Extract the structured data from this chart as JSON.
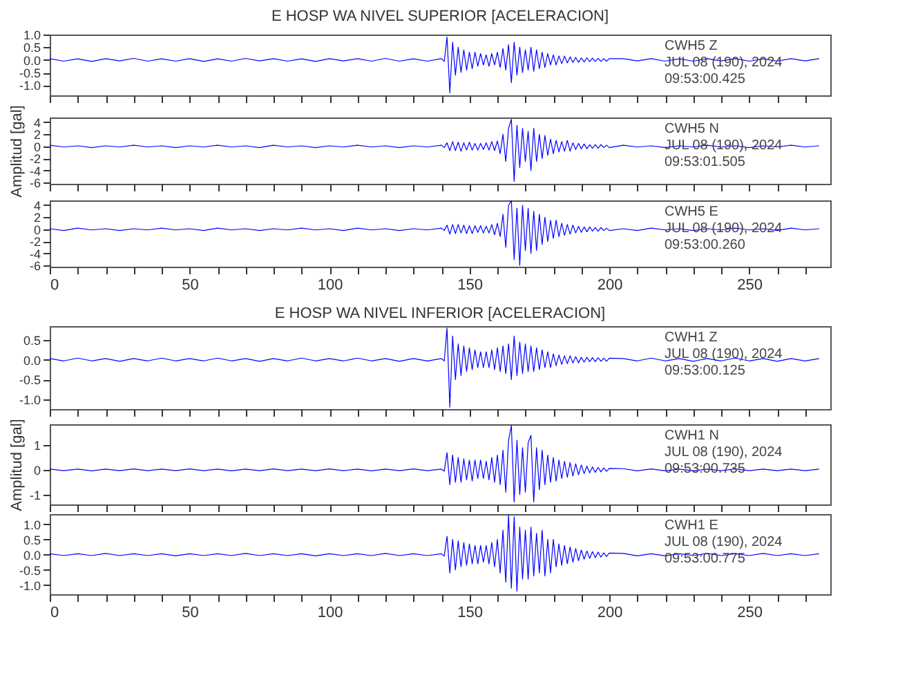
{
  "chart_data": [
    {
      "type": "line",
      "title": "E HOSP WA NIVEL SUPERIOR [ACELERACION]",
      "tick_labels": "y",
      "grid": false,
      "xlim": [
        0,
        279
      ],
      "ylim": [
        -1.4,
        1.0
      ],
      "xticks": [
        0,
        {
          "value": 10,
          "label": null
        },
        {
          "value": 20,
          "label": null
        },
        {
          "value": 30,
          "label": null
        },
        {
          "value": 40,
          "label": null
        },
        50,
        {
          "value": 60,
          "label": null
        },
        {
          "value": 70,
          "label": null
        },
        {
          "value": 80,
          "label": null
        },
        {
          "value": 90,
          "label": null
        },
        100,
        {
          "value": 110,
          "label": null
        },
        {
          "value": 120,
          "label": null
        },
        {
          "value": 130,
          "label": null
        },
        {
          "value": 140,
          "label": null
        },
        150,
        {
          "value": 160,
          "label": null
        },
        {
          "value": 170,
          "label": null
        },
        {
          "value": 180,
          "label": null
        },
        {
          "value": 190,
          "label": null
        },
        200,
        {
          "value": 210,
          "label": null
        },
        {
          "value": 220,
          "label": null
        },
        {
          "value": 230,
          "label": null
        },
        {
          "value": 240,
          "label": null
        },
        250,
        {
          "value": 260,
          "label": null
        },
        {
          "value": 270,
          "label": null
        }
      ],
      "yticks": [
        {
          "value": 1,
          "label": "1.0"
        },
        0.5,
        {
          "value": 0,
          "label": "0.0"
        },
        -0.5,
        {
          "value": -1,
          "label": "-1.0"
        }
      ],
      "annotations": [
        "CWH5   Z",
        "JUL 08 (190), 2024",
        "09:53:00.425"
      ],
      "x": [
        0,
        5,
        10,
        15,
        20,
        25,
        30,
        35,
        40,
        45,
        50,
        55,
        60,
        65,
        70,
        75,
        80,
        85,
        90,
        95,
        100,
        105,
        110,
        115,
        120,
        125,
        130,
        135,
        140,
        141,
        142,
        143,
        144,
        145,
        146,
        147,
        148,
        149,
        150,
        151,
        152,
        153,
        154,
        155,
        156,
        157,
        158,
        159,
        160,
        161,
        162,
        163,
        164,
        165,
        166,
        167,
        168,
        169,
        170,
        171,
        172,
        173,
        174,
        175,
        176,
        177,
        178,
        179,
        180,
        181,
        182,
        183,
        184,
        185,
        186,
        187,
        188,
        189,
        190,
        191,
        192,
        193,
        194,
        195,
        196,
        197,
        198,
        199,
        200,
        205,
        210,
        215,
        220,
        225,
        230,
        235,
        240,
        245,
        250,
        255,
        260,
        265,
        270,
        275
      ],
      "series": [
        {
          "color": "#0000ff",
          "values": [
            0.05,
            -0.05,
            0.04,
            -0.06,
            0.05,
            -0.04,
            0.06,
            -0.05,
            0.04,
            -0.05,
            0.05,
            -0.06,
            0.04,
            -0.05,
            0.06,
            -0.04,
            0.05,
            -0.05,
            0.04,
            -0.06,
            0.05,
            -0.04,
            0.05,
            -0.05,
            0.06,
            -0.05,
            0.04,
            -0.05,
            0.05,
            -0.06,
            0.9,
            -1.3,
            0.7,
            -0.6,
            0.5,
            -0.5,
            0.4,
            -0.4,
            0.3,
            -0.35,
            0.3,
            -0.25,
            0.25,
            -0.2,
            0.2,
            -0.25,
            0.25,
            -0.2,
            0.3,
            -0.3,
            0.45,
            -0.4,
            0.6,
            -0.9,
            0.7,
            -0.6,
            0.5,
            -0.5,
            0.4,
            -0.4,
            0.5,
            -0.45,
            0.4,
            -0.35,
            0.3,
            -0.3,
            0.25,
            -0.2,
            0.2,
            -0.2,
            0.15,
            -0.15,
            0.15,
            -0.12,
            0.12,
            -0.1,
            0.1,
            -0.1,
            0.08,
            -0.08,
            0.08,
            -0.07,
            0.07,
            -0.06,
            0.06,
            -0.06,
            0.05,
            -0.05,
            0.05,
            0.05,
            -0.04,
            0.05,
            -0.05,
            0.04,
            -0.05,
            0.05,
            -0.04,
            0.05,
            -0.05,
            0.04,
            -0.05,
            0.05,
            -0.04,
            0.05
          ]
        }
      ]
    },
    {
      "type": "line",
      "ylabel": "Amplitud [gal]",
      "tick_labels": "y",
      "grid": false,
      "xlim": [
        0,
        279
      ],
      "ylim": [
        -6.2,
        4.8
      ],
      "xticks": [
        0,
        {
          "value": 10,
          "label": null
        },
        {
          "value": 20,
          "label": null
        },
        {
          "value": 30,
          "label": null
        },
        {
          "value": 40,
          "label": null
        },
        50,
        {
          "value": 60,
          "label": null
        },
        {
          "value": 70,
          "label": null
        },
        {
          "value": 80,
          "label": null
        },
        {
          "value": 90,
          "label": null
        },
        100,
        {
          "value": 110,
          "label": null
        },
        {
          "value": 120,
          "label": null
        },
        {
          "value": 130,
          "label": null
        },
        {
          "value": 140,
          "label": null
        },
        150,
        {
          "value": 160,
          "label": null
        },
        {
          "value": 170,
          "label": null
        },
        {
          "value": 180,
          "label": null
        },
        {
          "value": 190,
          "label": null
        },
        200,
        {
          "value": 210,
          "label": null
        },
        {
          "value": 220,
          "label": null
        },
        {
          "value": 230,
          "label": null
        },
        {
          "value": 240,
          "label": null
        },
        250,
        {
          "value": 260,
          "label": null
        },
        {
          "value": 270,
          "label": null
        }
      ],
      "yticks": [
        4,
        2,
        0,
        -2,
        -4,
        -6
      ],
      "annotations": [
        "CWH5   N",
        "JUL 08 (190), 2024",
        "09:53:01.505"
      ],
      "x": [
        0,
        5,
        10,
        15,
        20,
        25,
        30,
        35,
        40,
        45,
        50,
        55,
        60,
        65,
        70,
        75,
        80,
        85,
        90,
        95,
        100,
        105,
        110,
        115,
        120,
        125,
        130,
        135,
        140,
        141,
        142,
        143,
        144,
        145,
        146,
        147,
        148,
        149,
        150,
        151,
        152,
        153,
        154,
        155,
        156,
        157,
        158,
        159,
        160,
        161,
        162,
        163,
        164,
        165,
        166,
        167,
        168,
        169,
        170,
        171,
        172,
        173,
        174,
        175,
        176,
        177,
        178,
        179,
        180,
        181,
        182,
        183,
        184,
        185,
        186,
        187,
        188,
        189,
        190,
        191,
        192,
        193,
        194,
        195,
        196,
        197,
        198,
        199,
        200,
        205,
        210,
        215,
        220,
        225,
        230,
        235,
        240,
        245,
        250,
        255,
        260,
        265,
        270,
        275
      ],
      "series": [
        {
          "color": "#0000ff",
          "values": [
            0.2,
            -0.1,
            0.1,
            -0.2,
            0.1,
            -0.1,
            0.2,
            -0.1,
            0.1,
            -0.2,
            0.1,
            -0.1,
            0.2,
            -0.1,
            0.1,
            -0.2,
            0.2,
            -0.1,
            0.1,
            -0.2,
            0.1,
            -0.1,
            0.2,
            -0.1,
            0.1,
            -0.2,
            0.1,
            -0.1,
            0.2,
            -0.2,
            0.6,
            -0.7,
            0.8,
            -0.7,
            0.7,
            -0.8,
            0.6,
            -0.6,
            0.7,
            -0.6,
            0.5,
            -0.6,
            0.5,
            -0.5,
            0.6,
            -0.6,
            0.8,
            -0.7,
            0.9,
            -1.2,
            2,
            -2.5,
            3,
            4.5,
            -5.8,
            3.5,
            -3.5,
            3,
            -2.5,
            2.5,
            -4,
            3,
            -2.5,
            2,
            -2,
            1.8,
            -1.5,
            1.2,
            -1.2,
            1,
            -0.9,
            0.8,
            -0.8,
            1,
            -0.8,
            0.6,
            -0.5,
            0.5,
            -0.4,
            0.4,
            -0.4,
            0.3,
            -0.3,
            0.3,
            -0.3,
            0.3,
            -0.2,
            0.2,
            -0.2,
            0.2,
            -0.1,
            0.1,
            -0.2,
            0.1,
            -0.1,
            0.2,
            -0.1,
            0.1,
            -0.2,
            0.1,
            -0.1,
            0.2,
            -0.1,
            0.1
          ]
        }
      ]
    },
    {
      "type": "line",
      "grid": false,
      "xlim": [
        0,
        279
      ],
      "ylim": [
        -6.2,
        4.8
      ],
      "xticks": [
        0,
        {
          "value": 10,
          "label": null
        },
        {
          "value": 20,
          "label": null
        },
        {
          "value": 30,
          "label": null
        },
        {
          "value": 40,
          "label": null
        },
        50,
        {
          "value": 60,
          "label": null
        },
        {
          "value": 70,
          "label": null
        },
        {
          "value": 80,
          "label": null
        },
        {
          "value": 90,
          "label": null
        },
        100,
        {
          "value": 110,
          "label": null
        },
        {
          "value": 120,
          "label": null
        },
        {
          "value": 130,
          "label": null
        },
        {
          "value": 140,
          "label": null
        },
        150,
        {
          "value": 160,
          "label": null
        },
        {
          "value": 170,
          "label": null
        },
        {
          "value": 180,
          "label": null
        },
        {
          "value": 190,
          "label": null
        },
        200,
        {
          "value": 210,
          "label": null
        },
        {
          "value": 220,
          "label": null
        },
        {
          "value": 230,
          "label": null
        },
        {
          "value": 240,
          "label": null
        },
        250,
        {
          "value": 260,
          "label": null
        },
        {
          "value": 270,
          "label": null
        }
      ],
      "yticks": [
        4,
        2,
        0,
        -2,
        -4,
        -6
      ],
      "annotations": [
        "CWH5   E",
        "JUL 08 (190), 2024",
        "09:53:00.260"
      ],
      "x": [
        0,
        5,
        10,
        15,
        20,
        25,
        30,
        35,
        40,
        45,
        50,
        55,
        60,
        65,
        70,
        75,
        80,
        85,
        90,
        95,
        100,
        105,
        110,
        115,
        120,
        125,
        130,
        135,
        140,
        141,
        142,
        143,
        144,
        145,
        146,
        147,
        148,
        149,
        150,
        151,
        152,
        153,
        154,
        155,
        156,
        157,
        158,
        159,
        160,
        161,
        162,
        163,
        164,
        165,
        166,
        167,
        168,
        169,
        170,
        171,
        172,
        173,
        174,
        175,
        176,
        177,
        178,
        179,
        180,
        181,
        182,
        183,
        184,
        185,
        186,
        187,
        188,
        189,
        190,
        191,
        192,
        193,
        194,
        195,
        196,
        197,
        198,
        199,
        200,
        205,
        210,
        215,
        220,
        225,
        230,
        235,
        240,
        245,
        250,
        255,
        260,
        265,
        270,
        275
      ],
      "series": [
        {
          "color": "#0000ff",
          "values": [
            0.1,
            -0.2,
            0.2,
            -0.1,
            0.1,
            -0.2,
            0.1,
            -0.1,
            0.2,
            -0.1,
            0.1,
            -0.2,
            0.2,
            -0.1,
            0.1,
            -0.2,
            0.1,
            -0.1,
            0.2,
            -0.1,
            0.1,
            -0.2,
            0.2,
            -0.1,
            0.1,
            -0.2,
            0.1,
            -0.1,
            0.2,
            -0.2,
            0.7,
            -0.8,
            0.8,
            -0.7,
            0.8,
            -0.6,
            0.7,
            -0.7,
            0.6,
            -0.7,
            0.6,
            -0.5,
            0.6,
            -0.6,
            0.5,
            -0.6,
            0.8,
            -0.9,
            1,
            -1.2,
            2.5,
            -3,
            4,
            4.8,
            -5,
            3.5,
            -6,
            4,
            -3.5,
            3.5,
            -4,
            3,
            -3.5,
            2.5,
            -2.5,
            2,
            -2,
            1.5,
            -1.5,
            1.5,
            -1.2,
            1,
            -1,
            0.8,
            -0.8,
            0.7,
            -0.6,
            0.5,
            -0.5,
            0.4,
            -0.4,
            0.4,
            -0.3,
            0.3,
            -0.3,
            0.3,
            -0.2,
            0.2,
            -0.2,
            0.1,
            -0.2,
            0.2,
            -0.1,
            0.1,
            -0.2,
            0.1,
            -0.1,
            0.2,
            -0.1,
            0.1,
            -0.2,
            0.2,
            -0.1,
            0.1
          ]
        }
      ]
    },
    {
      "type": "line",
      "title": "E HOSP WA NIVEL INFERIOR [ACELERACION]",
      "tick_labels": "y",
      "grid": false,
      "xlim": [
        0,
        279
      ],
      "ylim": [
        -1.25,
        0.85
      ],
      "xticks": [
        0,
        {
          "value": 10,
          "label": null
        },
        {
          "value": 20,
          "label": null
        },
        {
          "value": 30,
          "label": null
        },
        {
          "value": 40,
          "label": null
        },
        50,
        {
          "value": 60,
          "label": null
        },
        {
          "value": 70,
          "label": null
        },
        {
          "value": 80,
          "label": null
        },
        {
          "value": 90,
          "label": null
        },
        100,
        {
          "value": 110,
          "label": null
        },
        {
          "value": 120,
          "label": null
        },
        {
          "value": 130,
          "label": null
        },
        {
          "value": 140,
          "label": null
        },
        150,
        {
          "value": 160,
          "label": null
        },
        {
          "value": 170,
          "label": null
        },
        {
          "value": 180,
          "label": null
        },
        {
          "value": 190,
          "label": null
        },
        200,
        {
          "value": 210,
          "label": null
        },
        {
          "value": 220,
          "label": null
        },
        {
          "value": 230,
          "label": null
        },
        {
          "value": 240,
          "label": null
        },
        250,
        {
          "value": 260,
          "label": null
        },
        {
          "value": 270,
          "label": null
        }
      ],
      "yticks": [
        0.5,
        {
          "value": 0,
          "label": "0.0"
        },
        -0.5,
        {
          "value": -1,
          "label": "-1.0"
        }
      ],
      "annotations": [
        "CWH1   Z",
        "JUL 08 (190), 2024",
        "09:53:00.125"
      ],
      "x": [
        0,
        5,
        10,
        15,
        20,
        25,
        30,
        35,
        40,
        45,
        50,
        55,
        60,
        65,
        70,
        75,
        80,
        85,
        90,
        95,
        100,
        105,
        110,
        115,
        120,
        125,
        130,
        135,
        140,
        141,
        142,
        143,
        144,
        145,
        146,
        147,
        148,
        149,
        150,
        151,
        152,
        153,
        154,
        155,
        156,
        157,
        158,
        159,
        160,
        161,
        162,
        163,
        164,
        165,
        166,
        167,
        168,
        169,
        170,
        171,
        172,
        173,
        174,
        175,
        176,
        177,
        178,
        179,
        180,
        181,
        182,
        183,
        184,
        185,
        186,
        187,
        188,
        189,
        190,
        191,
        192,
        193,
        194,
        195,
        196,
        197,
        198,
        199,
        200,
        205,
        210,
        215,
        220,
        225,
        230,
        235,
        240,
        245,
        250,
        255,
        260,
        265,
        270,
        275
      ],
      "series": [
        {
          "color": "#0000ff",
          "values": [
            0.03,
            -0.03,
            0.04,
            -0.03,
            0.03,
            -0.04,
            0.03,
            -0.03,
            0.04,
            -0.03,
            0.03,
            -0.03,
            0.04,
            -0.03,
            0.03,
            -0.04,
            0.03,
            -0.03,
            0.04,
            -0.03,
            0.03,
            -0.03,
            0.04,
            -0.03,
            0.03,
            -0.04,
            0.03,
            -0.03,
            0.03,
            -0.03,
            0.8,
            -1.2,
            0.6,
            -0.5,
            0.4,
            -0.4,
            0.35,
            -0.3,
            0.3,
            -0.25,
            0.25,
            -0.2,
            0.2,
            -0.2,
            0.2,
            -0.2,
            0.25,
            -0.25,
            0.3,
            -0.3,
            0.35,
            -0.35,
            0.4,
            -0.5,
            0.6,
            -0.4,
            0.45,
            -0.35,
            0.4,
            -0.3,
            0.35,
            -0.3,
            0.3,
            -0.25,
            0.25,
            -0.2,
            0.2,
            -0.2,
            0.15,
            -0.15,
            0.12,
            -0.12,
            0.1,
            -0.1,
            0.1,
            -0.08,
            0.08,
            -0.08,
            0.06,
            -0.06,
            0.06,
            -0.05,
            0.05,
            -0.05,
            0.05,
            -0.04,
            0.04,
            -0.04,
            0.04,
            0.03,
            -0.03,
            0.04,
            -0.03,
            0.03,
            -0.04,
            0.03,
            -0.03,
            0.04,
            -0.03,
            0.03,
            -0.04,
            0.03,
            -0.03,
            0.03
          ]
        }
      ]
    },
    {
      "type": "line",
      "ylabel": "Amplitud [gal]",
      "tick_labels": "y",
      "grid": false,
      "xlim": [
        0,
        279
      ],
      "ylim": [
        -1.4,
        1.85
      ],
      "xticks": [
        0,
        {
          "value": 10,
          "label": null
        },
        {
          "value": 20,
          "label": null
        },
        {
          "value": 30,
          "label": null
        },
        {
          "value": 40,
          "label": null
        },
        50,
        {
          "value": 60,
          "label": null
        },
        {
          "value": 70,
          "label": null
        },
        {
          "value": 80,
          "label": null
        },
        {
          "value": 90,
          "label": null
        },
        100,
        {
          "value": 110,
          "label": null
        },
        {
          "value": 120,
          "label": null
        },
        {
          "value": 130,
          "label": null
        },
        {
          "value": 140,
          "label": null
        },
        150,
        {
          "value": 160,
          "label": null
        },
        {
          "value": 170,
          "label": null
        },
        {
          "value": 180,
          "label": null
        },
        {
          "value": 190,
          "label": null
        },
        200,
        {
          "value": 210,
          "label": null
        },
        {
          "value": 220,
          "label": null
        },
        {
          "value": 230,
          "label": null
        },
        {
          "value": 240,
          "label": null
        },
        250,
        {
          "value": 260,
          "label": null
        },
        {
          "value": 270,
          "label": null
        }
      ],
      "yticks": [
        1,
        0,
        -1
      ],
      "annotations": [
        "CWH1   N",
        "JUL 08 (190), 2024",
        "09:53:00.735"
      ],
      "x": [
        0,
        5,
        10,
        15,
        20,
        25,
        30,
        35,
        40,
        45,
        50,
        55,
        60,
        65,
        70,
        75,
        80,
        85,
        90,
        95,
        100,
        105,
        110,
        115,
        120,
        125,
        130,
        135,
        140,
        141,
        142,
        143,
        144,
        145,
        146,
        147,
        148,
        149,
        150,
        151,
        152,
        153,
        154,
        155,
        156,
        157,
        158,
        159,
        160,
        161,
        162,
        163,
        164,
        165,
        166,
        167,
        168,
        169,
        170,
        171,
        172,
        173,
        174,
        175,
        176,
        177,
        178,
        179,
        180,
        181,
        182,
        183,
        184,
        185,
        186,
        187,
        188,
        189,
        190,
        191,
        192,
        193,
        194,
        195,
        196,
        197,
        198,
        199,
        200,
        205,
        210,
        215,
        220,
        225,
        230,
        235,
        240,
        245,
        250,
        255,
        260,
        265,
        270,
        275
      ],
      "series": [
        {
          "color": "#0000ff",
          "values": [
            0.03,
            -0.03,
            0.03,
            -0.04,
            0.03,
            -0.03,
            0.04,
            -0.03,
            0.03,
            -0.03,
            0.04,
            -0.03,
            0.03,
            -0.04,
            0.03,
            -0.03,
            0.04,
            -0.03,
            0.03,
            -0.03,
            0.04,
            -0.03,
            0.03,
            -0.04,
            0.03,
            -0.03,
            0.04,
            -0.03,
            0.03,
            -0.05,
            0.7,
            -0.6,
            0.6,
            -0.5,
            0.5,
            -0.5,
            0.45,
            -0.4,
            0.4,
            -0.45,
            0.4,
            -0.35,
            0.4,
            -0.35,
            0.35,
            -0.4,
            0.5,
            -0.5,
            0.6,
            -0.6,
            0.8,
            -0.9,
            1.2,
            1.8,
            -1.3,
            1.2,
            -1,
            0.9,
            -0.9,
            1.1,
            1.4,
            -1.3,
            0.9,
            -0.8,
            0.8,
            -0.6,
            0.6,
            -0.5,
            0.5,
            -0.45,
            0.4,
            -0.35,
            0.35,
            -0.3,
            0.3,
            -0.25,
            0.25,
            -0.2,
            0.2,
            -0.15,
            0.15,
            -0.12,
            0.12,
            -0.1,
            0.1,
            -0.08,
            0.08,
            -0.06,
            0.06,
            0.05,
            -0.04,
            0.04,
            -0.04,
            0.03,
            -0.04,
            0.03,
            -0.03,
            0.04,
            -0.03,
            0.03,
            -0.03,
            0.03,
            -0.03,
            0.03
          ]
        }
      ]
    },
    {
      "type": "line",
      "grid": false,
      "xlim": [
        0,
        279
      ],
      "ylim": [
        -1.3,
        1.33
      ],
      "xticks": [
        0,
        {
          "value": 10,
          "label": null
        },
        {
          "value": 20,
          "label": null
        },
        {
          "value": 30,
          "label": null
        },
        {
          "value": 40,
          "label": null
        },
        50,
        {
          "value": 60,
          "label": null
        },
        {
          "value": 70,
          "label": null
        },
        {
          "value": 80,
          "label": null
        },
        {
          "value": 90,
          "label": null
        },
        100,
        {
          "value": 110,
          "label": null
        },
        {
          "value": 120,
          "label": null
        },
        {
          "value": 130,
          "label": null
        },
        {
          "value": 140,
          "label": null
        },
        150,
        {
          "value": 160,
          "label": null
        },
        {
          "value": 170,
          "label": null
        },
        {
          "value": 180,
          "label": null
        },
        {
          "value": 190,
          "label": null
        },
        200,
        {
          "value": 210,
          "label": null
        },
        {
          "value": 220,
          "label": null
        },
        {
          "value": 230,
          "label": null
        },
        {
          "value": 240,
          "label": null
        },
        250,
        {
          "value": 260,
          "label": null
        },
        {
          "value": 270,
          "label": null
        }
      ],
      "yticks": [
        {
          "value": 1,
          "label": "1.0"
        },
        0.5,
        {
          "value": 0,
          "label": "0.0"
        },
        -0.5,
        {
          "value": -1,
          "label": "-1.0"
        }
      ],
      "annotations": [
        "CWH1   E",
        "JUL 08 (190), 2024",
        "09:53:00.775"
      ],
      "x": [
        0,
        5,
        10,
        15,
        20,
        25,
        30,
        35,
        40,
        45,
        50,
        55,
        60,
        65,
        70,
        75,
        80,
        85,
        90,
        95,
        100,
        105,
        110,
        115,
        120,
        125,
        130,
        135,
        140,
        141,
        142,
        143,
        144,
        145,
        146,
        147,
        148,
        149,
        150,
        151,
        152,
        153,
        154,
        155,
        156,
        157,
        158,
        159,
        160,
        161,
        162,
        163,
        164,
        165,
        166,
        167,
        168,
        169,
        170,
        171,
        172,
        173,
        174,
        175,
        176,
        177,
        178,
        179,
        180,
        181,
        182,
        183,
        184,
        185,
        186,
        187,
        188,
        189,
        190,
        191,
        192,
        193,
        194,
        195,
        196,
        197,
        198,
        199,
        200,
        205,
        210,
        215,
        220,
        225,
        230,
        235,
        240,
        245,
        250,
        255,
        260,
        265,
        270,
        275
      ],
      "series": [
        {
          "color": "#0000ff",
          "values": [
            0.03,
            -0.03,
            0.03,
            -0.03,
            0.04,
            -0.03,
            0.03,
            -0.03,
            0.03,
            -0.04,
            0.03,
            -0.03,
            0.03,
            -0.03,
            0.04,
            -0.03,
            0.03,
            -0.03,
            0.03,
            -0.04,
            0.03,
            -0.03,
            0.03,
            -0.03,
            0.04,
            -0.03,
            0.03,
            -0.03,
            0.03,
            -0.05,
            0.6,
            -0.6,
            0.5,
            -0.5,
            0.45,
            -0.4,
            0.4,
            -0.35,
            0.35,
            -0.3,
            0.3,
            -0.3,
            0.3,
            -0.25,
            0.3,
            -0.3,
            0.4,
            -0.4,
            0.5,
            -0.6,
            0.8,
            -0.9,
            1.3,
            -1.1,
            1.25,
            -1.2,
            0.9,
            -0.8,
            0.8,
            -0.8,
            0.9,
            -0.7,
            0.7,
            -0.6,
            0.8,
            -0.7,
            0.5,
            -0.6,
            0.5,
            -0.4,
            0.35,
            -0.35,
            0.3,
            -0.3,
            0.25,
            -0.25,
            0.2,
            -0.2,
            0.15,
            -0.15,
            0.12,
            -0.12,
            0.1,
            -0.1,
            0.08,
            -0.08,
            0.06,
            -0.06,
            0.05,
            0.04,
            -0.04,
            0.03,
            -0.04,
            0.03,
            -0.03,
            0.04,
            -0.03,
            0.03,
            -0.03,
            0.04,
            -0.03,
            0.03,
            -0.03,
            0.03
          ]
        }
      ]
    }
  ]
}
